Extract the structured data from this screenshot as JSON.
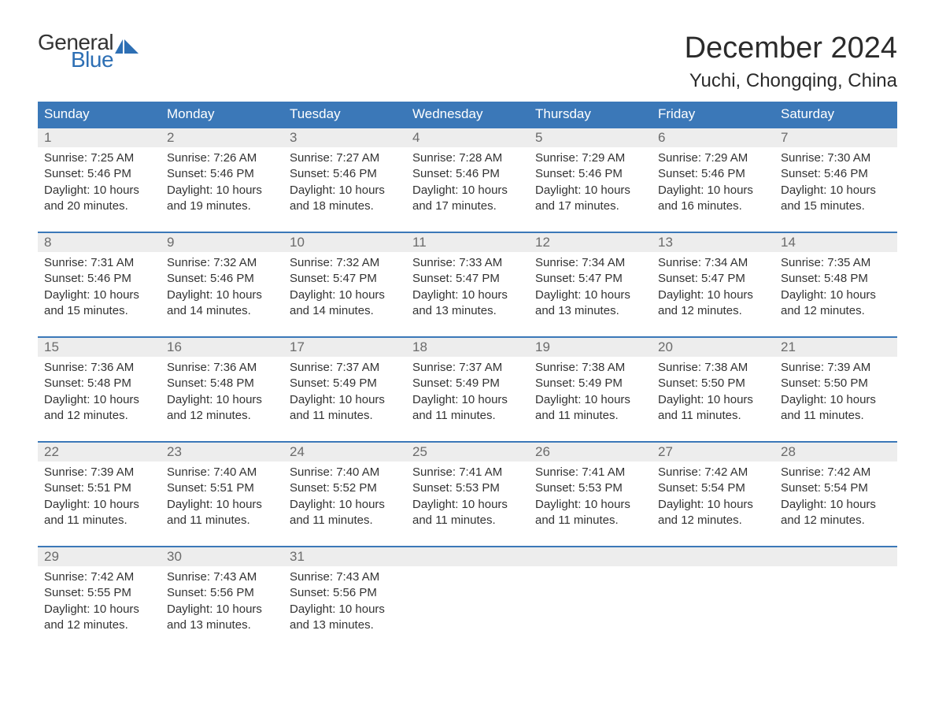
{
  "logo": {
    "text_top": "General",
    "text_bottom": "Blue",
    "flag_color": "#2d6fb4",
    "top_color": "#333333"
  },
  "header": {
    "month_title": "December 2024",
    "location": "Yuchi, Chongqing, China"
  },
  "styling": {
    "page_background": "#ffffff",
    "header_bar_color": "#3b78b8",
    "header_text_color": "#ffffff",
    "week_border_color": "#3b78b8",
    "daynum_row_bg": "#ededed",
    "daynum_color": "#6b6b6b",
    "body_text_color": "#333333",
    "month_title_fontsize": 38,
    "location_fontsize": 24,
    "dayheader_fontsize": 17,
    "daynum_fontsize": 17,
    "cell_fontsize": 15
  },
  "calendar": {
    "type": "table",
    "columns": [
      "Sunday",
      "Monday",
      "Tuesday",
      "Wednesday",
      "Thursday",
      "Friday",
      "Saturday"
    ],
    "weeks": [
      [
        {
          "day": "1",
          "sunrise": "Sunrise: 7:25 AM",
          "sunset": "Sunset: 5:46 PM",
          "daylight": "Daylight: 10 hours and 20 minutes."
        },
        {
          "day": "2",
          "sunrise": "Sunrise: 7:26 AM",
          "sunset": "Sunset: 5:46 PM",
          "daylight": "Daylight: 10 hours and 19 minutes."
        },
        {
          "day": "3",
          "sunrise": "Sunrise: 7:27 AM",
          "sunset": "Sunset: 5:46 PM",
          "daylight": "Daylight: 10 hours and 18 minutes."
        },
        {
          "day": "4",
          "sunrise": "Sunrise: 7:28 AM",
          "sunset": "Sunset: 5:46 PM",
          "daylight": "Daylight: 10 hours and 17 minutes."
        },
        {
          "day": "5",
          "sunrise": "Sunrise: 7:29 AM",
          "sunset": "Sunset: 5:46 PM",
          "daylight": "Daylight: 10 hours and 17 minutes."
        },
        {
          "day": "6",
          "sunrise": "Sunrise: 7:29 AM",
          "sunset": "Sunset: 5:46 PM",
          "daylight": "Daylight: 10 hours and 16 minutes."
        },
        {
          "day": "7",
          "sunrise": "Sunrise: 7:30 AM",
          "sunset": "Sunset: 5:46 PM",
          "daylight": "Daylight: 10 hours and 15 minutes."
        }
      ],
      [
        {
          "day": "8",
          "sunrise": "Sunrise: 7:31 AM",
          "sunset": "Sunset: 5:46 PM",
          "daylight": "Daylight: 10 hours and 15 minutes."
        },
        {
          "day": "9",
          "sunrise": "Sunrise: 7:32 AM",
          "sunset": "Sunset: 5:46 PM",
          "daylight": "Daylight: 10 hours and 14 minutes."
        },
        {
          "day": "10",
          "sunrise": "Sunrise: 7:32 AM",
          "sunset": "Sunset: 5:47 PM",
          "daylight": "Daylight: 10 hours and 14 minutes."
        },
        {
          "day": "11",
          "sunrise": "Sunrise: 7:33 AM",
          "sunset": "Sunset: 5:47 PM",
          "daylight": "Daylight: 10 hours and 13 minutes."
        },
        {
          "day": "12",
          "sunrise": "Sunrise: 7:34 AM",
          "sunset": "Sunset: 5:47 PM",
          "daylight": "Daylight: 10 hours and 13 minutes."
        },
        {
          "day": "13",
          "sunrise": "Sunrise: 7:34 AM",
          "sunset": "Sunset: 5:47 PM",
          "daylight": "Daylight: 10 hours and 12 minutes."
        },
        {
          "day": "14",
          "sunrise": "Sunrise: 7:35 AM",
          "sunset": "Sunset: 5:48 PM",
          "daylight": "Daylight: 10 hours and 12 minutes."
        }
      ],
      [
        {
          "day": "15",
          "sunrise": "Sunrise: 7:36 AM",
          "sunset": "Sunset: 5:48 PM",
          "daylight": "Daylight: 10 hours and 12 minutes."
        },
        {
          "day": "16",
          "sunrise": "Sunrise: 7:36 AM",
          "sunset": "Sunset: 5:48 PM",
          "daylight": "Daylight: 10 hours and 12 minutes."
        },
        {
          "day": "17",
          "sunrise": "Sunrise: 7:37 AM",
          "sunset": "Sunset: 5:49 PM",
          "daylight": "Daylight: 10 hours and 11 minutes."
        },
        {
          "day": "18",
          "sunrise": "Sunrise: 7:37 AM",
          "sunset": "Sunset: 5:49 PM",
          "daylight": "Daylight: 10 hours and 11 minutes."
        },
        {
          "day": "19",
          "sunrise": "Sunrise: 7:38 AM",
          "sunset": "Sunset: 5:49 PM",
          "daylight": "Daylight: 10 hours and 11 minutes."
        },
        {
          "day": "20",
          "sunrise": "Sunrise: 7:38 AM",
          "sunset": "Sunset: 5:50 PM",
          "daylight": "Daylight: 10 hours and 11 minutes."
        },
        {
          "day": "21",
          "sunrise": "Sunrise: 7:39 AM",
          "sunset": "Sunset: 5:50 PM",
          "daylight": "Daylight: 10 hours and 11 minutes."
        }
      ],
      [
        {
          "day": "22",
          "sunrise": "Sunrise: 7:39 AM",
          "sunset": "Sunset: 5:51 PM",
          "daylight": "Daylight: 10 hours and 11 minutes."
        },
        {
          "day": "23",
          "sunrise": "Sunrise: 7:40 AM",
          "sunset": "Sunset: 5:51 PM",
          "daylight": "Daylight: 10 hours and 11 minutes."
        },
        {
          "day": "24",
          "sunrise": "Sunrise: 7:40 AM",
          "sunset": "Sunset: 5:52 PM",
          "daylight": "Daylight: 10 hours and 11 minutes."
        },
        {
          "day": "25",
          "sunrise": "Sunrise: 7:41 AM",
          "sunset": "Sunset: 5:53 PM",
          "daylight": "Daylight: 10 hours and 11 minutes."
        },
        {
          "day": "26",
          "sunrise": "Sunrise: 7:41 AM",
          "sunset": "Sunset: 5:53 PM",
          "daylight": "Daylight: 10 hours and 11 minutes."
        },
        {
          "day": "27",
          "sunrise": "Sunrise: 7:42 AM",
          "sunset": "Sunset: 5:54 PM",
          "daylight": "Daylight: 10 hours and 12 minutes."
        },
        {
          "day": "28",
          "sunrise": "Sunrise: 7:42 AM",
          "sunset": "Sunset: 5:54 PM",
          "daylight": "Daylight: 10 hours and 12 minutes."
        }
      ],
      [
        {
          "day": "29",
          "sunrise": "Sunrise: 7:42 AM",
          "sunset": "Sunset: 5:55 PM",
          "daylight": "Daylight: 10 hours and 12 minutes."
        },
        {
          "day": "30",
          "sunrise": "Sunrise: 7:43 AM",
          "sunset": "Sunset: 5:56 PM",
          "daylight": "Daylight: 10 hours and 13 minutes."
        },
        {
          "day": "31",
          "sunrise": "Sunrise: 7:43 AM",
          "sunset": "Sunset: 5:56 PM",
          "daylight": "Daylight: 10 hours and 13 minutes."
        },
        null,
        null,
        null,
        null
      ]
    ]
  }
}
